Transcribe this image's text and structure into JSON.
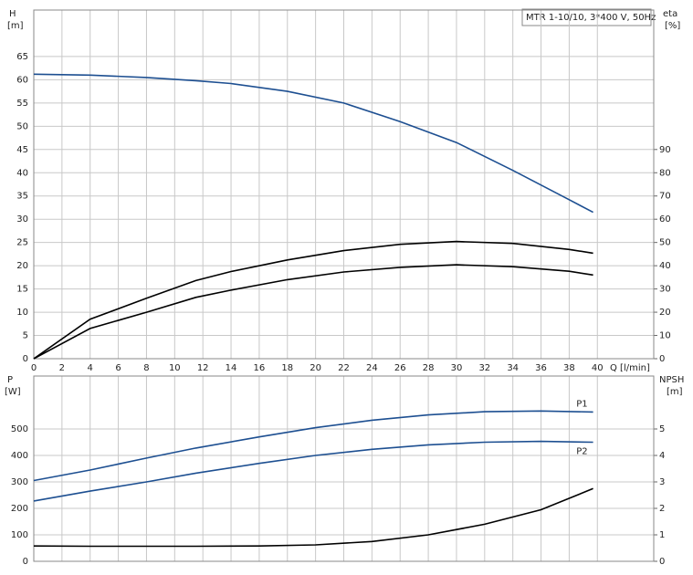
{
  "chart_data": [
    {
      "type": "line",
      "legend_text": "MTR 1-10/10, 3*400 V, 50Hz",
      "y_label": "H",
      "y_unit": "[m]",
      "y2_label": "eta",
      "y2_unit": "[%]",
      "x_label": "Q [l/min]",
      "xlim": [
        0,
        44
      ],
      "xticks": [
        0,
        2,
        4,
        6,
        8,
        10,
        12,
        14,
        16,
        18,
        20,
        22,
        24,
        26,
        28,
        30,
        32,
        34,
        36,
        38,
        40
      ],
      "ylim": [
        0,
        75
      ],
      "yticks": [
        0,
        5,
        10,
        15,
        20,
        25,
        30,
        35,
        40,
        45,
        50,
        55,
        60,
        65
      ],
      "y2lim": [
        0,
        150
      ],
      "y2ticks": [
        0,
        10,
        20,
        30,
        40,
        50,
        60,
        70,
        80,
        90
      ],
      "grid": true,
      "x": [
        0,
        4,
        8,
        11.5,
        14,
        18,
        22,
        26,
        30,
        34,
        38,
        39.7
      ],
      "series": [
        {
          "color": "#1d4f91",
          "values": [
            61.2,
            61.0,
            60.5,
            59.8,
            59.2,
            57.5,
            55.0,
            51.0,
            46.5,
            40.5,
            34.2,
            31.5
          ]
        },
        {
          "color": "#000000",
          "axis": "y2",
          "values": [
            0,
            17,
            26,
            33.6,
            37.5,
            42.5,
            46.5,
            49.2,
            50.4,
            49.6,
            47,
            45.4
          ]
        },
        {
          "color": "#000000",
          "axis": "y2",
          "values": [
            0,
            13,
            20,
            26.4,
            29.5,
            34,
            37.3,
            39.3,
            40.4,
            39.6,
            37.6,
            36
          ]
        }
      ]
    },
    {
      "type": "line",
      "y_label": "P",
      "y_unit": "[W]",
      "y2_label": "NPSH",
      "y2_unit": "[m]",
      "xlim": [
        0,
        44
      ],
      "ylim": [
        0,
        700
      ],
      "yticks": [
        0,
        100,
        200,
        300,
        400,
        500
      ],
      "y2lim": [
        0,
        7
      ],
      "y2ticks": [
        0,
        1,
        2,
        3,
        4,
        5
      ],
      "grid": true,
      "x": [
        0,
        4,
        8,
        11.5,
        16,
        20,
        24,
        28,
        32,
        36,
        39.7
      ],
      "series": [
        {
          "name": "P1",
          "color": "#1d4f91",
          "values": [
            305,
            345,
            390,
            428,
            470,
            505,
            533,
            553,
            565,
            568,
            564
          ]
        },
        {
          "name": "P2",
          "color": "#1d4f91",
          "values": [
            228,
            265,
            300,
            333,
            370,
            400,
            423,
            440,
            450,
            453,
            450
          ]
        },
        {
          "color": "#000000",
          "axis": "y2",
          "values": [
            0.58,
            0.57,
            0.57,
            0.57,
            0.58,
            0.62,
            0.75,
            1.0,
            1.4,
            1.95,
            2.75
          ]
        }
      ]
    }
  ]
}
